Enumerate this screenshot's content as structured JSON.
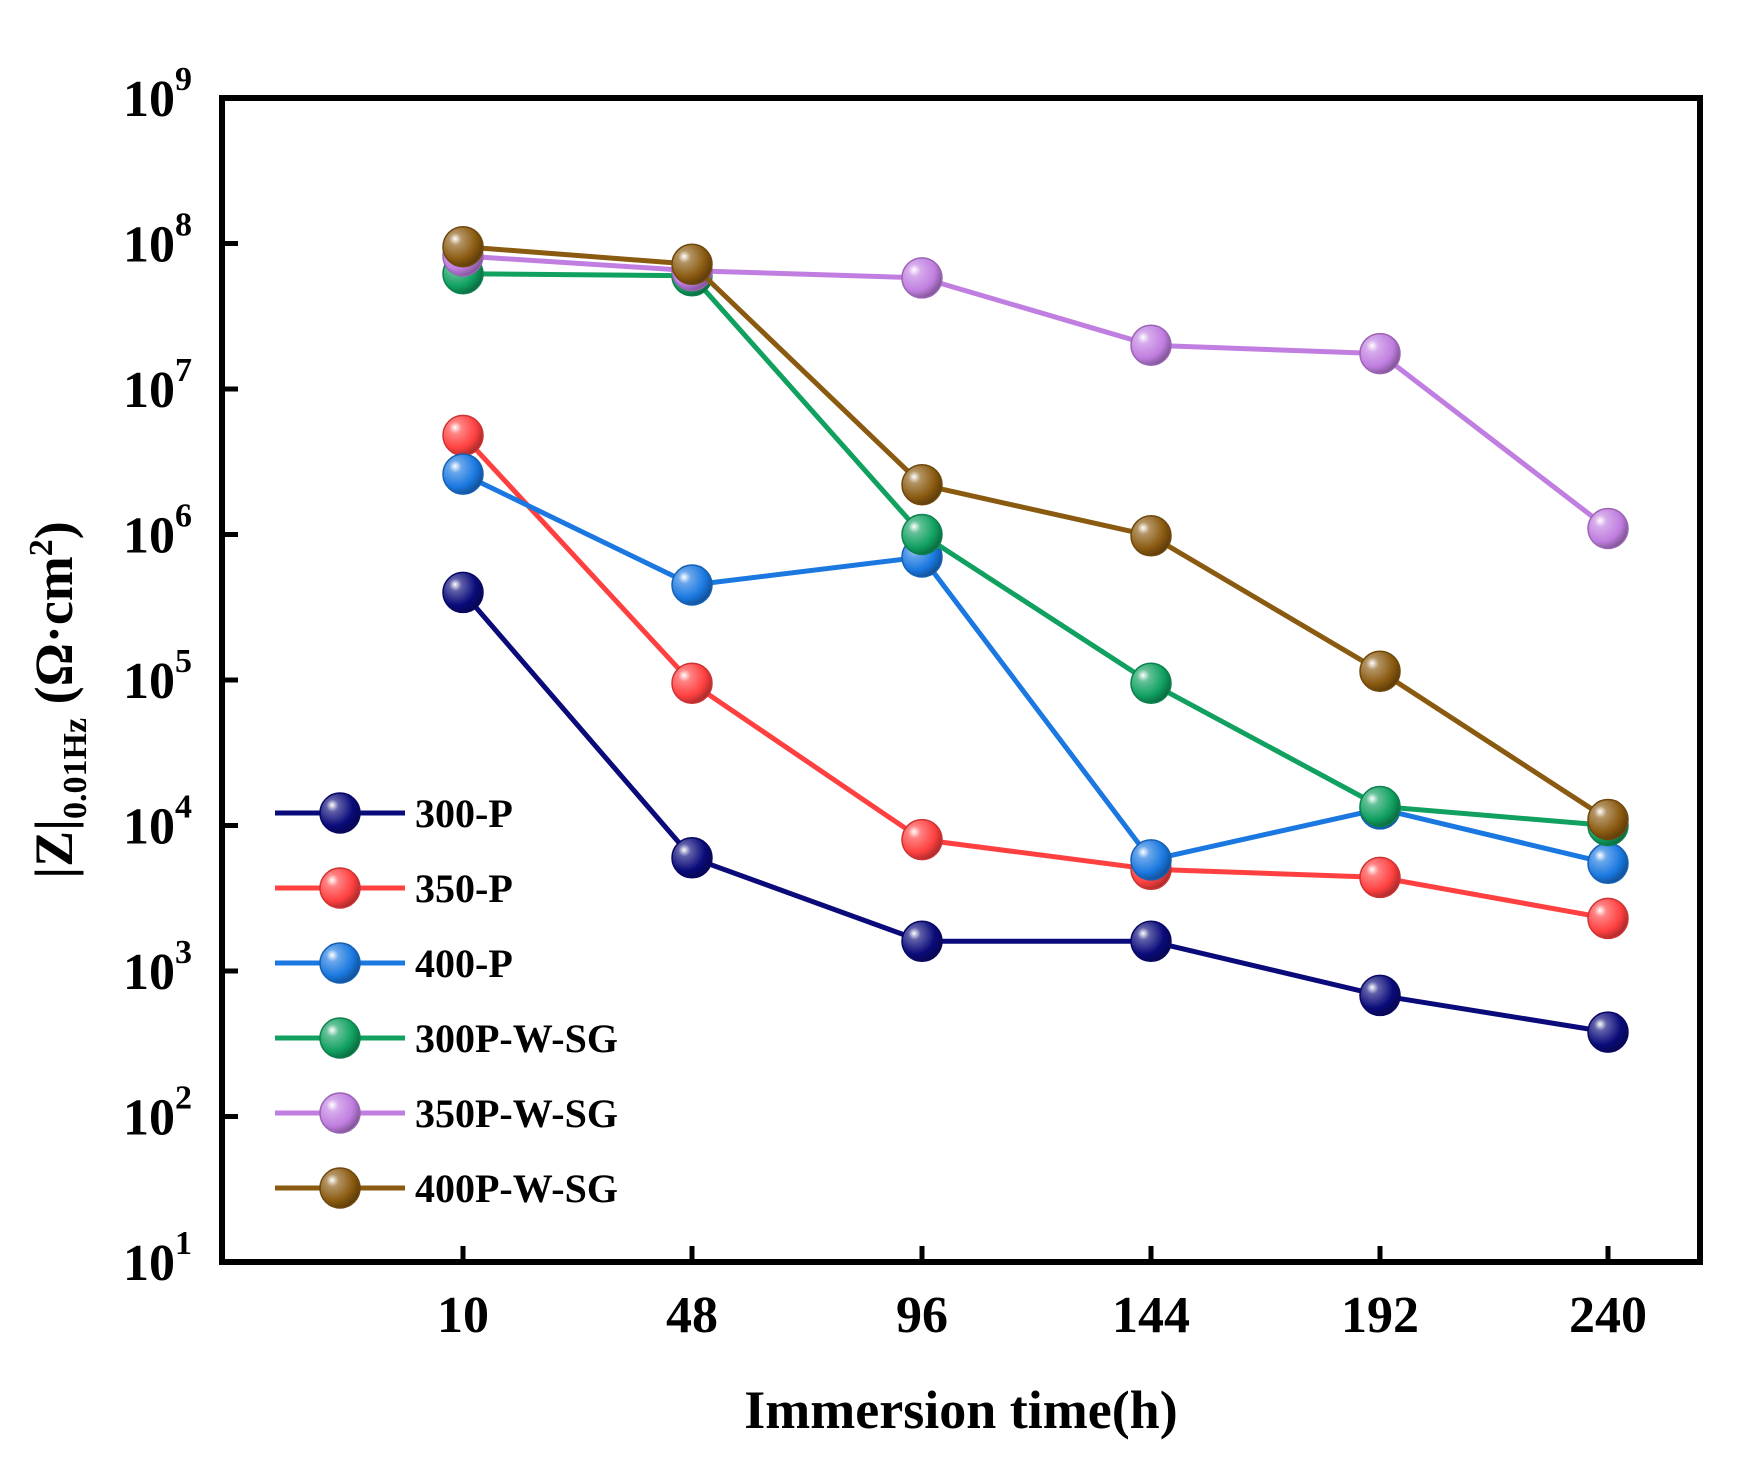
{
  "chart_data": {
    "type": "line",
    "y_scale": "log",
    "x": [
      "10",
      "48",
      "96",
      "144",
      "192",
      "240"
    ],
    "xlabel": "Immersion time(h)",
    "ylabel": {
      "main": "|Z|",
      "subscript": "0.01Hz",
      "unit_prefix": " (Ω·cm",
      "unit_exp": "2",
      "unit_suffix": ")"
    },
    "ylim": [
      10,
      1000000000
    ],
    "yticks": [
      {
        "base": "10",
        "exp": "1",
        "value": 10
      },
      {
        "base": "10",
        "exp": "2",
        "value": 100
      },
      {
        "base": "10",
        "exp": "3",
        "value": 1000
      },
      {
        "base": "10",
        "exp": "4",
        "value": 10000
      },
      {
        "base": "10",
        "exp": "5",
        "value": 100000
      },
      {
        "base": "10",
        "exp": "6",
        "value": 1000000
      },
      {
        "base": "10",
        "exp": "7",
        "value": 10000000
      },
      {
        "base": "10",
        "exp": "8",
        "value": 100000000
      },
      {
        "base": "10",
        "exp": "9",
        "value": 1000000000
      }
    ],
    "legend_position": "bottom-left",
    "series": [
      {
        "name": "300-P",
        "color": "#0a0a7a",
        "values": [
          400000,
          6000,
          1600,
          1600,
          680,
          380
        ]
      },
      {
        "name": "350-P",
        "color": "#ff4040",
        "values": [
          4800000,
          95000,
          8000,
          5000,
          4400,
          2300
        ]
      },
      {
        "name": "400-P",
        "color": "#1a78e0",
        "values": [
          2600000,
          450000,
          700000,
          5800,
          13000,
          5500
        ]
      },
      {
        "name": "300P-W-SG",
        "color": "#10a060",
        "values": [
          62000000,
          60000000,
          1000000,
          95000,
          13500,
          10000
        ]
      },
      {
        "name": "350P-W-SG",
        "color": "#c07ee0",
        "values": [
          82000000,
          65000000,
          58000000,
          20000000,
          17500000,
          1100000
        ]
      },
      {
        "name": "400P-W-SG",
        "color": "#8a5a10",
        "values": [
          95000000,
          72000000,
          2200000,
          980000,
          115000,
          11000
        ]
      }
    ]
  }
}
